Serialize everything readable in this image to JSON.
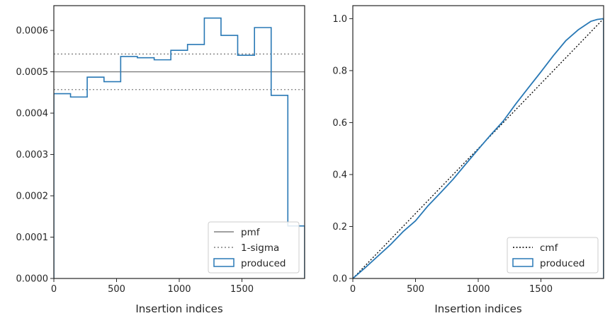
{
  "chart_data": [
    {
      "type": "histogram-step",
      "xlabel": "Insertion indices",
      "ylabel": "",
      "xlim": [
        0,
        2000
      ],
      "ylim": [
        0,
        0.00066
      ],
      "x_ticks": [
        0,
        500,
        1000,
        1500
      ],
      "x_tick_labels": [
        "0",
        "500",
        "1000",
        "1500"
      ],
      "y_ticks": [
        0,
        0.0001,
        0.0002,
        0.0003,
        0.0004,
        0.0005,
        0.0006
      ],
      "y_tick_labels": [
        "0.0000",
        "0.0001",
        "0.0002",
        "0.0003",
        "0.0004",
        "0.0005",
        "0.0006"
      ],
      "grid": false,
      "legend_position": "lower-right",
      "reference_lines": [
        {
          "name": "pmf",
          "y": 0.0005,
          "style": "solid",
          "color": "#808080"
        },
        {
          "name": "1-sigma",
          "y": [
            0.000543,
            0.000457
          ],
          "style": "dotted",
          "color": "#808080"
        }
      ],
      "series": [
        {
          "name": "produced",
          "color": "#2878b5",
          "bin_edges": [
            0,
            133,
            266,
            400,
            533,
            666,
            800,
            933,
            1066,
            1200,
            1333,
            1466,
            1600,
            1733,
            1866,
            2000
          ],
          "values": [
            0.000447,
            0.000439,
            0.000487,
            0.000476,
            0.000537,
            0.000534,
            0.000529,
            0.000552,
            0.000566,
            0.00063,
            0.000588,
            0.00054,
            0.000607,
            0.000443,
            0.000127
          ]
        }
      ],
      "legend": [
        "pmf",
        "1-sigma",
        "produced"
      ]
    },
    {
      "type": "line",
      "xlabel": "Insertion indices",
      "ylabel": "",
      "xlim": [
        0,
        2000
      ],
      "ylim": [
        0,
        1.05
      ],
      "x_ticks": [
        0,
        500,
        1000,
        1500
      ],
      "x_tick_labels": [
        "0",
        "500",
        "1000",
        "1500"
      ],
      "y_ticks": [
        0,
        0.2,
        0.4,
        0.6,
        0.8,
        1.0
      ],
      "y_tick_labels": [
        "0.0",
        "0.2",
        "0.4",
        "0.6",
        "0.8",
        "1.0"
      ],
      "grid": false,
      "legend_position": "lower-right",
      "series": [
        {
          "name": "cmf",
          "style": "dotted",
          "color": "#000000",
          "x": [
            0,
            2000
          ],
          "y": [
            0,
            1.0
          ]
        },
        {
          "name": "produced",
          "style": "step",
          "color": "#2878b5",
          "x": [
            0,
            100,
            200,
            300,
            400,
            500,
            600,
            700,
            800,
            900,
            1000,
            1100,
            1200,
            1300,
            1400,
            1500,
            1600,
            1700,
            1800,
            1900,
            1950,
            2000
          ],
          "y": [
            0,
            0.042,
            0.086,
            0.13,
            0.18,
            0.222,
            0.28,
            0.33,
            0.382,
            0.44,
            0.497,
            0.553,
            0.606,
            0.672,
            0.734,
            0.795,
            0.858,
            0.916,
            0.958,
            0.99,
            0.997,
            1.0
          ]
        }
      ],
      "legend": [
        "cmf",
        "produced"
      ]
    }
  ]
}
